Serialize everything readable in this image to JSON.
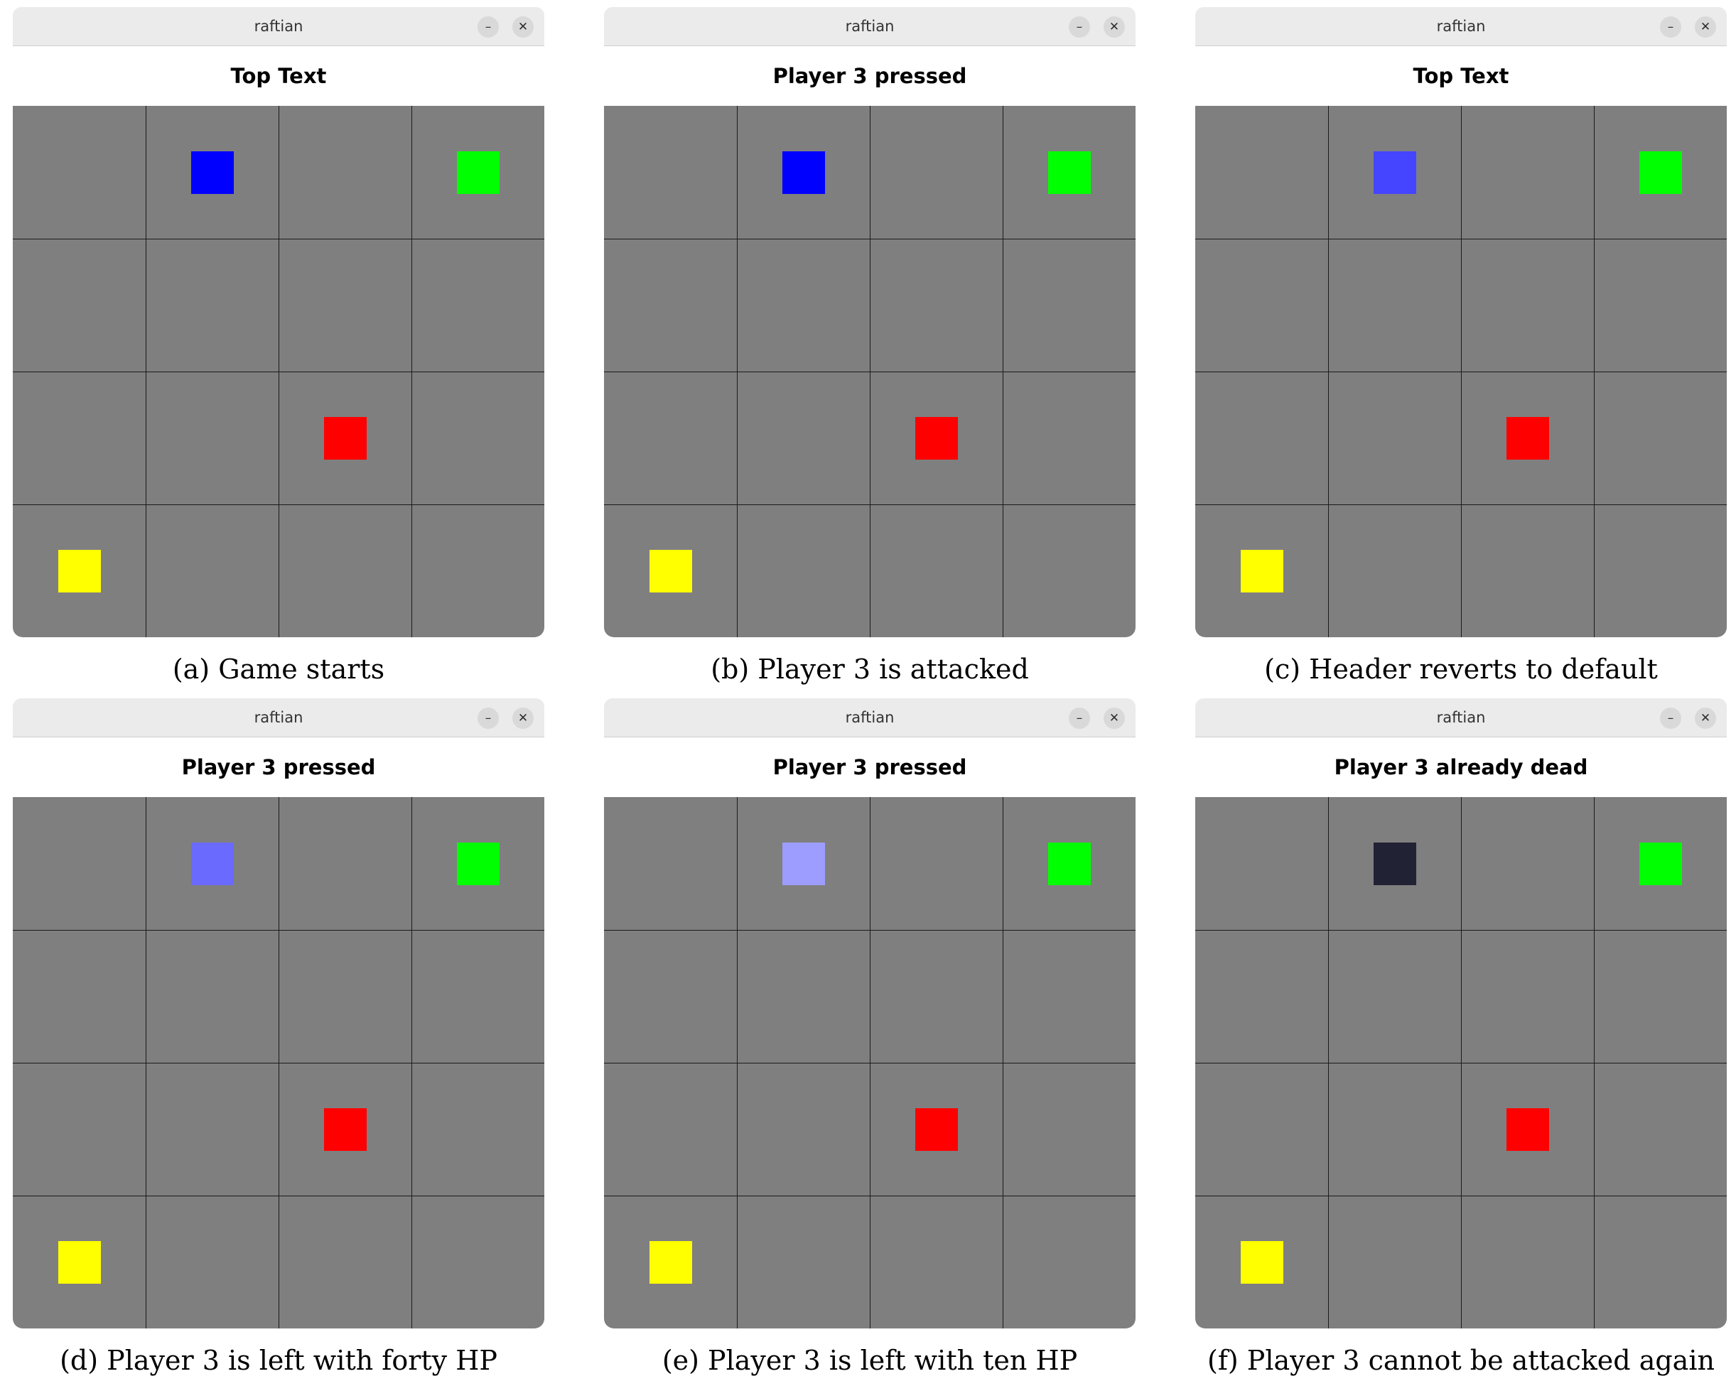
{
  "panels": [
    {
      "window_title": "raftian",
      "minimize_glyph": "–",
      "close_glyph": "✕",
      "header": "Top Text",
      "caption": "(a) Game starts",
      "pieces": {
        "blue": "#0000ff",
        "green": "#00ff00",
        "red": "#ff0000",
        "yellow": "#ffff00"
      }
    },
    {
      "window_title": "raftian",
      "minimize_glyph": "–",
      "close_glyph": "✕",
      "header": "Player 3 pressed",
      "caption": "(b) Player 3 is attacked",
      "pieces": {
        "blue": "#0000ff",
        "green": "#00ff00",
        "red": "#ff0000",
        "yellow": "#ffff00"
      }
    },
    {
      "window_title": "raftian",
      "minimize_glyph": "–",
      "close_glyph": "✕",
      "header": "Top Text",
      "caption": "(c) Header reverts to default",
      "pieces": {
        "blue": "#4545ff",
        "green": "#00ff00",
        "red": "#ff0000",
        "yellow": "#ffff00"
      }
    },
    {
      "window_title": "raftian",
      "minimize_glyph": "–",
      "close_glyph": "✕",
      "header": "Player 3 pressed",
      "caption": "(d) Player 3 is left with forty HP",
      "pieces": {
        "blue": "#6a6aff",
        "green": "#00ff00",
        "red": "#ff0000",
        "yellow": "#ffff00"
      }
    },
    {
      "window_title": "raftian",
      "minimize_glyph": "–",
      "close_glyph": "✕",
      "header": "Player 3 pressed",
      "caption": "(e) Player 3 is left with ten HP",
      "pieces": {
        "blue": "#9d9dff",
        "green": "#00ff00",
        "red": "#ff0000",
        "yellow": "#ffff00"
      }
    },
    {
      "window_title": "raftian",
      "minimize_glyph": "–",
      "close_glyph": "✕",
      "header": "Player 3 already dead",
      "caption": "(f) Player 3 cannot be attacked again",
      "pieces": {
        "blue": "#222235",
        "green": "#00ff00",
        "red": "#ff0000",
        "yellow": "#ffff00"
      }
    }
  ],
  "board": {
    "rows": 4,
    "cols": 4,
    "background": "#7f7f7f",
    "grid_line_color": "#1a1a1a",
    "piece_cells": {
      "blue": [
        0,
        1
      ],
      "green": [
        0,
        3
      ],
      "red": [
        2,
        2
      ],
      "yellow": [
        3,
        0
      ]
    }
  }
}
